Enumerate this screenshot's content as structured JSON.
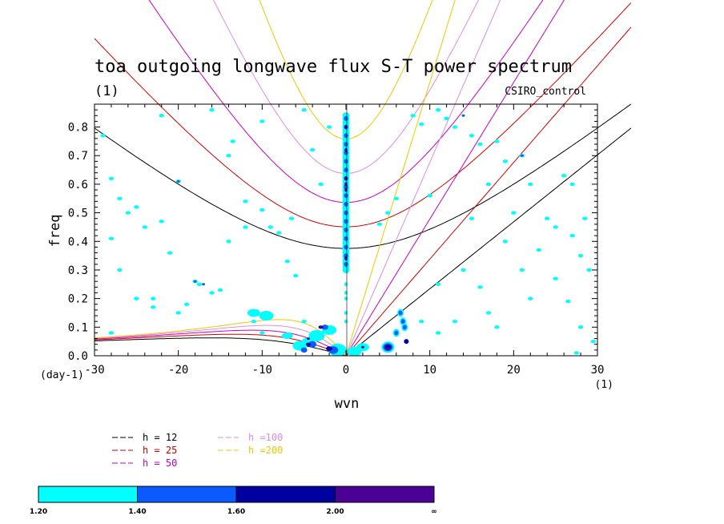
{
  "chart_data": {
    "type": "line",
    "title": "toa outgoing longwave flux S-T power spectrum",
    "subtitle": "(1)",
    "model_label": "CSIRO_control",
    "xlabel": "wvn",
    "ylabel": "freq",
    "x_units": "(1)",
    "y_units": "(day-1)",
    "xlim": [
      -30,
      30
    ],
    "ylim": [
      0,
      0.88
    ],
    "xticks": [
      -30,
      -20,
      -10,
      0,
      10,
      20,
      30
    ],
    "yticks": [
      0.0,
      0.1,
      0.2,
      0.3,
      0.4,
      0.5,
      0.6,
      0.7,
      0.8
    ],
    "series": [
      {
        "name": "h = 12",
        "depth": 12,
        "color": "#000000"
      },
      {
        "name": "h = 25",
        "depth": 25,
        "color": "#d40000"
      },
      {
        "name": "h = 50",
        "depth": 50,
        "color": "#c800c8"
      },
      {
        "name": "h =100",
        "depth": 100,
        "color": "#e08ce0"
      },
      {
        "name": "h =200",
        "depth": 200,
        "color": "#f0c800"
      }
    ],
    "colorbar": {
      "labels": [
        "1.20",
        "1.40",
        "1.60",
        "2.00",
        "∞"
      ],
      "colors": [
        "#00ffff",
        "#0a5aff",
        "#0000a0",
        "#4b0096"
      ]
    },
    "power_features": [
      {
        "x": 0,
        "y0": 0.3,
        "y1": 0.85,
        "level": 2
      },
      {
        "x": -3.5,
        "y": 0.07,
        "level": 3
      },
      {
        "x": 5,
        "y": 0.03,
        "level": 2
      },
      {
        "x": -18,
        "y": 0.28,
        "level": 1
      }
    ]
  }
}
